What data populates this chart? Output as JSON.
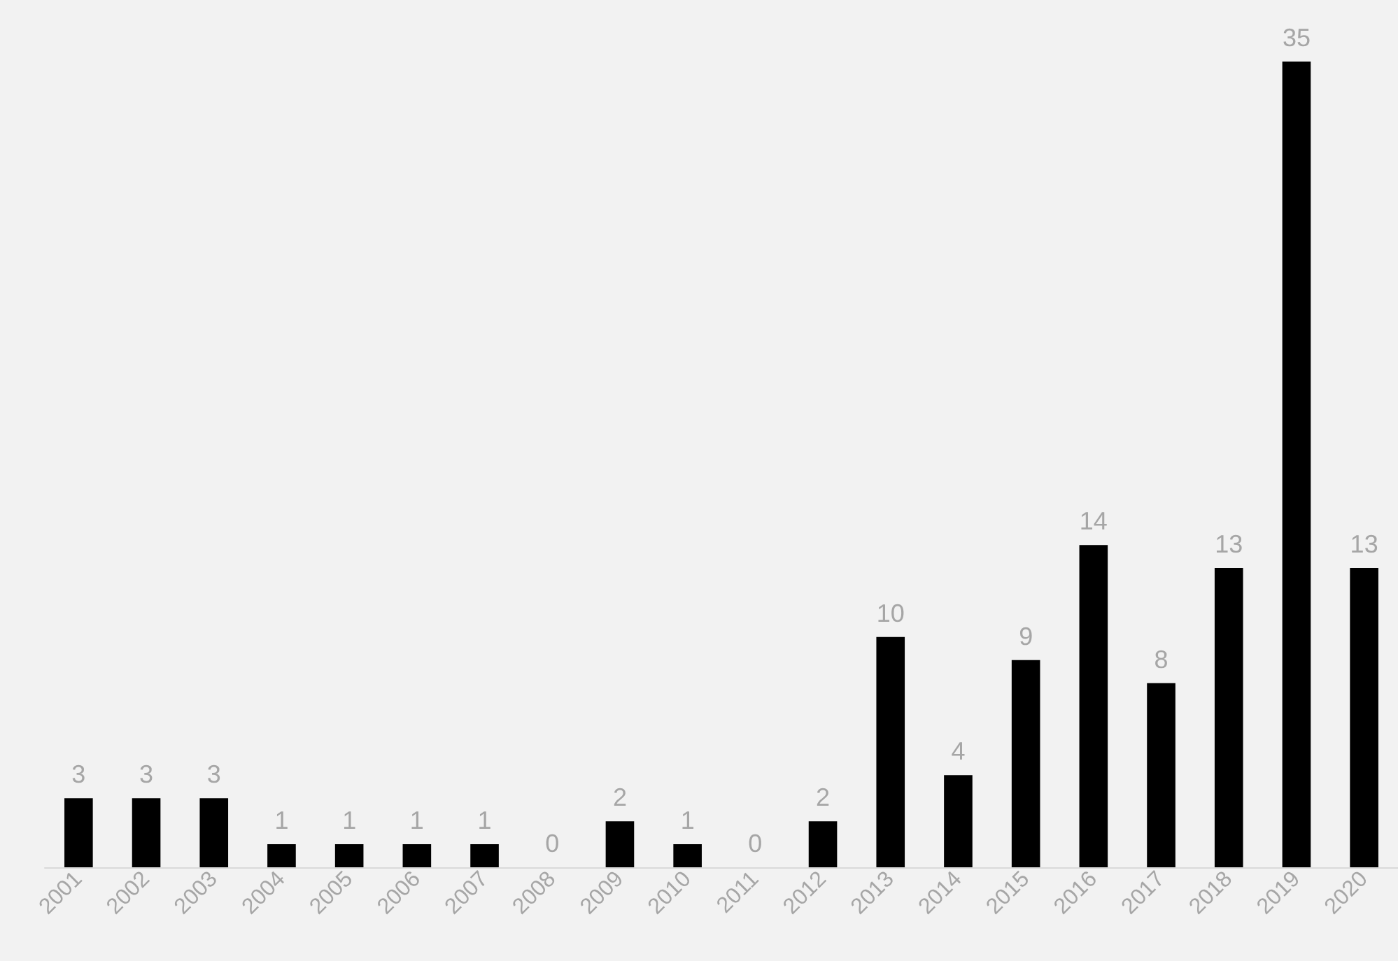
{
  "chart_data": {
    "type": "bar",
    "categories": [
      "2001",
      "2002",
      "2003",
      "2004",
      "2005",
      "2006",
      "2007",
      "2008",
      "2009",
      "2010",
      "2011",
      "2012",
      "2013",
      "2014",
      "2015",
      "2016",
      "2017",
      "2018",
      "2019",
      "2020"
    ],
    "values": [
      3,
      3,
      3,
      1,
      1,
      1,
      1,
      0,
      2,
      1,
      0,
      2,
      10,
      4,
      9,
      14,
      8,
      13,
      35,
      13
    ],
    "color": "#000000",
    "data_labels": true
  }
}
